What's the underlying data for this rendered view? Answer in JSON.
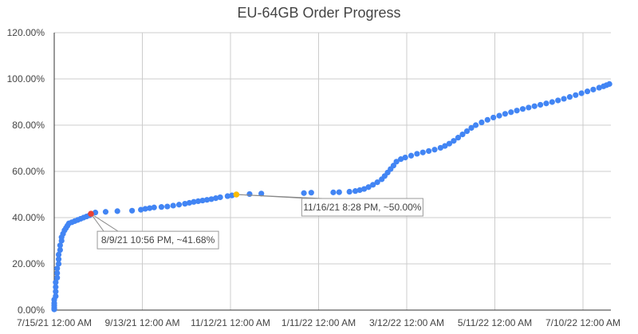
{
  "chart_data": {
    "type": "scatter",
    "title": "EU-64GB Order Progress",
    "xlabel": "",
    "ylabel": "",
    "grid": true,
    "legend": "none",
    "x_unit": "date",
    "xlim": [
      "7/15/21 12:00 AM",
      "7/29/22 12:00 AM"
    ],
    "ylim": [
      0,
      120
    ],
    "yticks": [
      {
        "value": 0,
        "label": "0.00%"
      },
      {
        "value": 20,
        "label": "20.00%"
      },
      {
        "value": 40,
        "label": "40.00%"
      },
      {
        "value": 60,
        "label": "60.00%"
      },
      {
        "value": 80,
        "label": "80.00%"
      },
      {
        "value": 100,
        "label": "100.00%"
      },
      {
        "value": 120,
        "label": "120.00%"
      }
    ],
    "xticks": [
      {
        "value": "7/15/21 12:00 AM",
        "label": "7/15/21 12:00 AM"
      },
      {
        "value": "9/13/21 12:00 AM",
        "label": "9/13/21 12:00 AM"
      },
      {
        "value": "11/12/21 12:00 AM",
        "label": "11/12/21 12:00 AM"
      },
      {
        "value": "1/11/22 12:00 AM",
        "label": "1/11/22 12:00 AM"
      },
      {
        "value": "3/12/22 12:00 AM",
        "label": "3/12/22 12:00 AM"
      },
      {
        "value": "5/11/22 12:00 AM",
        "label": "5/11/22 12:00 AM"
      },
      {
        "value": "7/10/22 12:00 AM",
        "label": "7/10/22 12:00 AM"
      }
    ],
    "series": [
      {
        "color": "#4285f4",
        "points": [
          [
            "7/15/21",
            0.3
          ],
          [
            "7/15/21",
            1.0
          ],
          [
            "7/15/21",
            2.0
          ],
          [
            "7/15/21",
            3.0
          ],
          [
            "7/15/21",
            4.5
          ],
          [
            "7/16/21",
            6
          ],
          [
            "7/16/21",
            8
          ],
          [
            "7/16/21",
            10
          ],
          [
            "7/16/21",
            12
          ],
          [
            "7/17/21",
            14
          ],
          [
            "7/17/21",
            16
          ],
          [
            "7/17/21",
            18
          ],
          [
            "7/18/21",
            20
          ],
          [
            "7/18/21",
            22
          ],
          [
            "7/18/21",
            24
          ],
          [
            "7/19/21",
            26
          ],
          [
            "7/19/21",
            28
          ],
          [
            "7/20/21",
            30
          ],
          [
            "7/20/21",
            31.5
          ],
          [
            "7/21/21",
            33
          ],
          [
            "7/22/21",
            34.5
          ],
          [
            "7/23/21",
            35.5
          ],
          [
            "7/24/21",
            36.5
          ],
          [
            "7/25/21",
            37.5
          ],
          [
            "7/27/21",
            38
          ],
          [
            "7/29/21",
            38.5
          ],
          [
            "7/31/21",
            39
          ],
          [
            "8/2/21",
            39.5
          ],
          [
            "8/4/21",
            40
          ],
          [
            "8/6/21",
            40.5
          ],
          [
            "8/8/21",
            41
          ],
          [
            "8/12/21",
            42.2
          ],
          [
            "8/19/21",
            42.5
          ],
          [
            "8/27/21",
            42.8
          ],
          [
            "9/6/21",
            43.0
          ],
          [
            "9/12/21",
            43.4
          ],
          [
            "9/15/21",
            43.8
          ],
          [
            "9/18/21",
            44.1
          ],
          [
            "9/21/21",
            44.4
          ],
          [
            "9/26/21",
            44.6
          ],
          [
            "9/30/21",
            44.8
          ],
          [
            "10/4/21",
            45.2
          ],
          [
            "10/8/21",
            45.6
          ],
          [
            "10/12/21",
            46.0
          ],
          [
            "10/15/21",
            46.4
          ],
          [
            "10/18/21",
            46.8
          ],
          [
            "10/21/21",
            47.1
          ],
          [
            "10/24/21",
            47.4
          ],
          [
            "10/27/21",
            47.7
          ],
          [
            "10/30/21",
            48.0
          ],
          [
            "11/2/21",
            48.4
          ],
          [
            "11/5/21",
            48.8
          ],
          [
            "11/10/21",
            49.3
          ],
          [
            "11/13/21",
            49.6
          ],
          [
            "11/25/21",
            50.2
          ],
          [
            "12/3/21",
            50.4
          ],
          [
            "1/1/22",
            50.6
          ],
          [
            "1/6/22",
            50.8
          ],
          [
            "1/21/22",
            50.9
          ],
          [
            "1/25/22",
            51.0
          ],
          [
            "2/1/22",
            51.2
          ],
          [
            "2/5/22",
            51.5
          ],
          [
            "2/8/22",
            51.9
          ],
          [
            "2/11/22",
            52.4
          ],
          [
            "2/14/22",
            53.2
          ],
          [
            "2/17/22",
            54.2
          ],
          [
            "2/20/22",
            55.3
          ],
          [
            "2/23/22",
            56.6
          ],
          [
            "2/25/22",
            58.0
          ],
          [
            "2/27/22",
            59.5
          ],
          [
            "3/1/22",
            61.0
          ],
          [
            "3/3/22",
            62.5
          ],
          [
            "3/5/22",
            64.2
          ],
          [
            "3/8/22",
            65.3
          ],
          [
            "3/11/22",
            66.0
          ],
          [
            "3/15/22",
            66.8
          ],
          [
            "3/19/22",
            67.6
          ],
          [
            "3/23/22",
            68.2
          ],
          [
            "3/27/22",
            68.8
          ],
          [
            "3/31/22",
            69.4
          ],
          [
            "4/4/22",
            70.2
          ],
          [
            "4/7/22",
            71.0
          ],
          [
            "4/10/22",
            72.0
          ],
          [
            "4/13/22",
            73.2
          ],
          [
            "4/16/22",
            74.6
          ],
          [
            "4/19/22",
            76.0
          ],
          [
            "4/22/22",
            77.4
          ],
          [
            "4/25/22",
            78.8
          ],
          [
            "4/28/22",
            80.0
          ],
          [
            "5/2/22",
            81.2
          ],
          [
            "5/6/22",
            82.3
          ],
          [
            "5/10/22",
            83.3
          ],
          [
            "5/14/22",
            84.1
          ],
          [
            "5/18/22",
            84.9
          ],
          [
            "5/22/22",
            85.6
          ],
          [
            "5/26/22",
            86.3
          ],
          [
            "5/30/22",
            87.0
          ],
          [
            "6/3/22",
            87.6
          ],
          [
            "6/7/22",
            88.2
          ],
          [
            "6/11/22",
            88.8
          ],
          [
            "6/15/22",
            89.4
          ],
          [
            "6/19/22",
            90.0
          ],
          [
            "6/23/22",
            90.7
          ],
          [
            "6/27/22",
            91.4
          ],
          [
            "7/1/22",
            92.2
          ],
          [
            "7/5/22",
            93.0
          ],
          [
            "7/9/22",
            93.8
          ],
          [
            "7/13/22",
            94.6
          ],
          [
            "7/17/22",
            95.4
          ],
          [
            "7/21/22",
            96.2
          ],
          [
            "7/24/22",
            96.8
          ],
          [
            "7/26/22",
            97.3
          ],
          [
            "7/28/22",
            97.8
          ]
        ]
      }
    ],
    "highlights": [
      {
        "x": "8/9/21",
        "y": 41.68,
        "color": "#ea4335",
        "label": "8/9/21 10:56 PM, ~41.68%"
      },
      {
        "x": "11/16/21",
        "y": 50.0,
        "color": "#fbbc04",
        "label": "11/16/21 8:28 PM, ~50.00%"
      }
    ]
  }
}
